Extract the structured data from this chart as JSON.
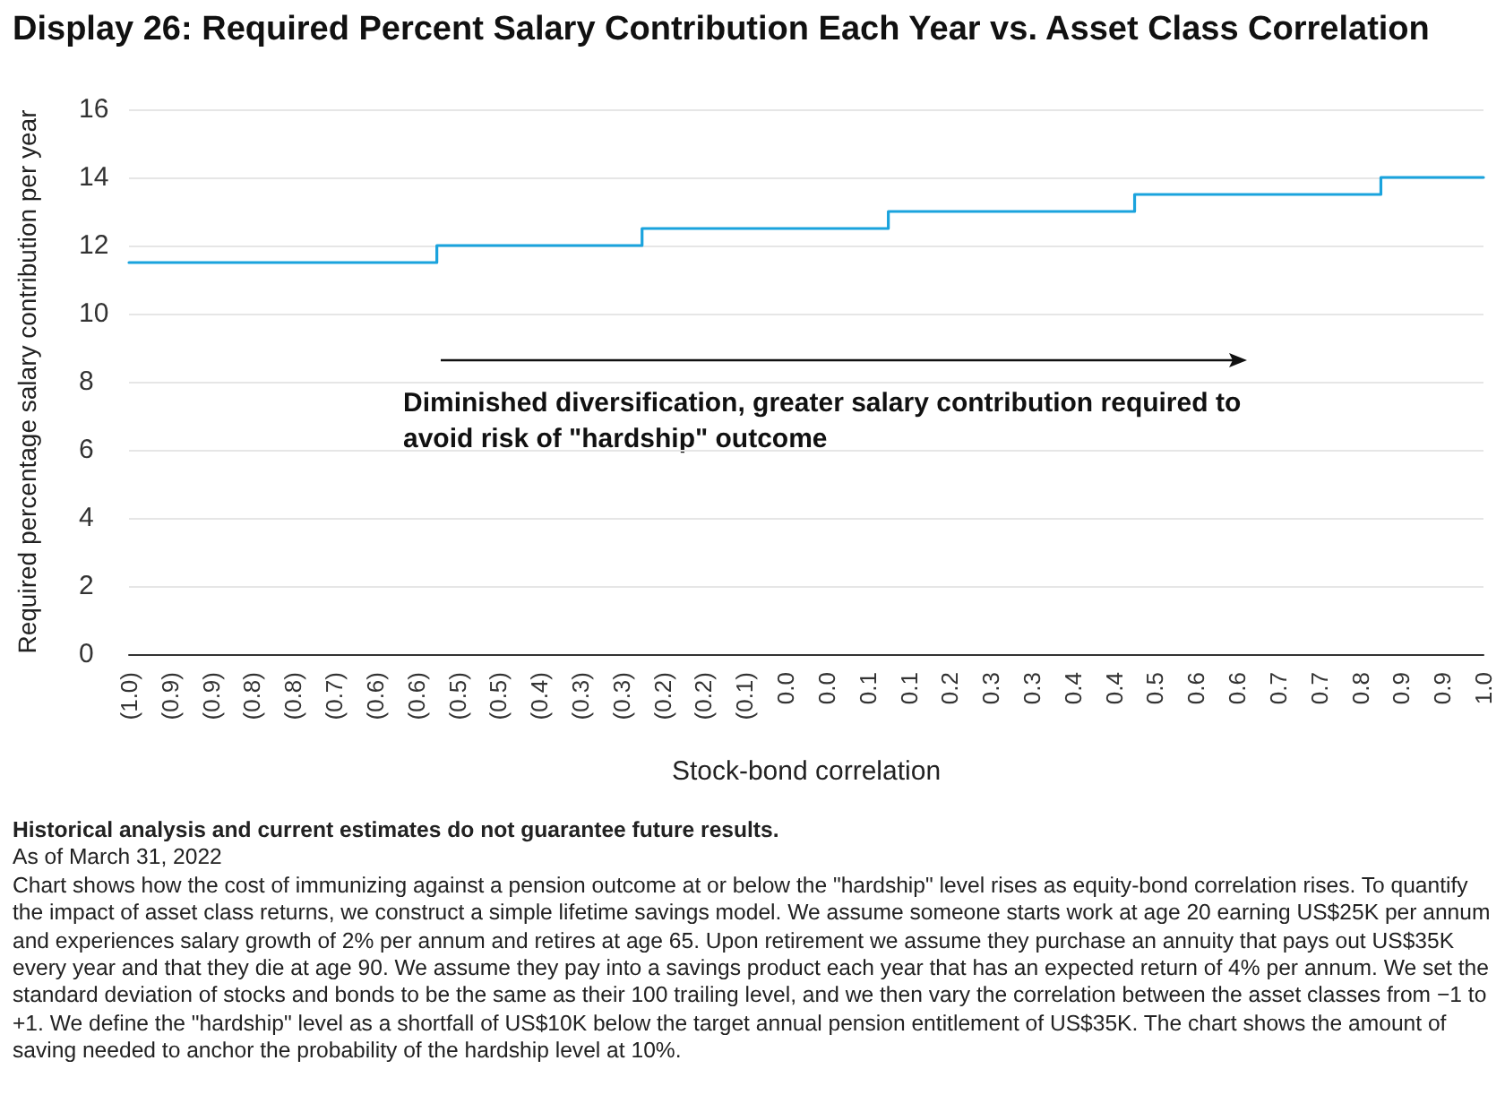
{
  "chart_data": {
    "type": "step",
    "title": "Display 26: Required Percent Salary Contribution Each Year vs. Asset Class Correlation",
    "xlabel": "Stock-bond correlation",
    "ylabel": "Required percentage salary contribution per year",
    "categories": [
      "(1.0)",
      "(0.9)",
      "(0.9)",
      "(0.8)",
      "(0.8)",
      "(0.7)",
      "(0.6)",
      "(0.6)",
      "(0.5)",
      "(0.5)",
      "(0.4)",
      "(0.3)",
      "(0.3)",
      "(0.2)",
      "(0.2)",
      "(0.1)",
      "0.0",
      "0.0",
      "0.1",
      "0.1",
      "0.2",
      "0.3",
      "0.3",
      "0.4",
      "0.4",
      "0.5",
      "0.6",
      "0.6",
      "0.7",
      "0.7",
      "0.8",
      "0.9",
      "0.9",
      "1.0"
    ],
    "series": [
      {
        "color": "#1aa3dd",
        "values": [
          11.5,
          11.5,
          11.5,
          11.5,
          11.5,
          11.5,
          11.5,
          11.5,
          12,
          12,
          12,
          12,
          12,
          12.5,
          12.5,
          12.5,
          12.5,
          12.5,
          12.5,
          13,
          13,
          13,
          13,
          13,
          13,
          13.5,
          13.5,
          13.5,
          13.5,
          13.5,
          13.5,
          14,
          14,
          14
        ]
      }
    ],
    "ylim": [
      0,
      16
    ],
    "yticks": [
      0,
      2,
      4,
      6,
      8,
      10,
      12,
      14,
      16
    ],
    "grid": "y",
    "marker": "none",
    "line_style": "solid",
    "annotations": [
      "Diminished diversification, greater salary contribution required to avoid risk of \"hardship\" outcome",
      "Historical analysis and current estimates do not guarantee future results.",
      "As of March 31, 2022",
      "Chart shows how the cost of immunizing against a pension outcome at or below the \"hardship\" level rises as equity-bond correlation rises. To quantify the impact of asset class returns, we construct a simple lifetime savings model. We assume someone starts work at age 20 earning US$25K per annum and experiences salary growth of 2% per annum and retires at age 65. Upon retirement we assume they purchase an annuity that pays out US$35K every year and that they die at age 90. We assume they pay into a savings product each year that has an expected return of 4% per annum. We set the standard deviation of stocks and bonds to be the same as their 100 trailing level, and we then vary the correlation between the asset classes from −1 to +1. We define the \"hardship\" level as a shortfall of US$10K below the target annual pension entitlement of US$35K. The chart shows the amount of saving needed to anchor the probability of the hardship level at 10%."
    ]
  }
}
